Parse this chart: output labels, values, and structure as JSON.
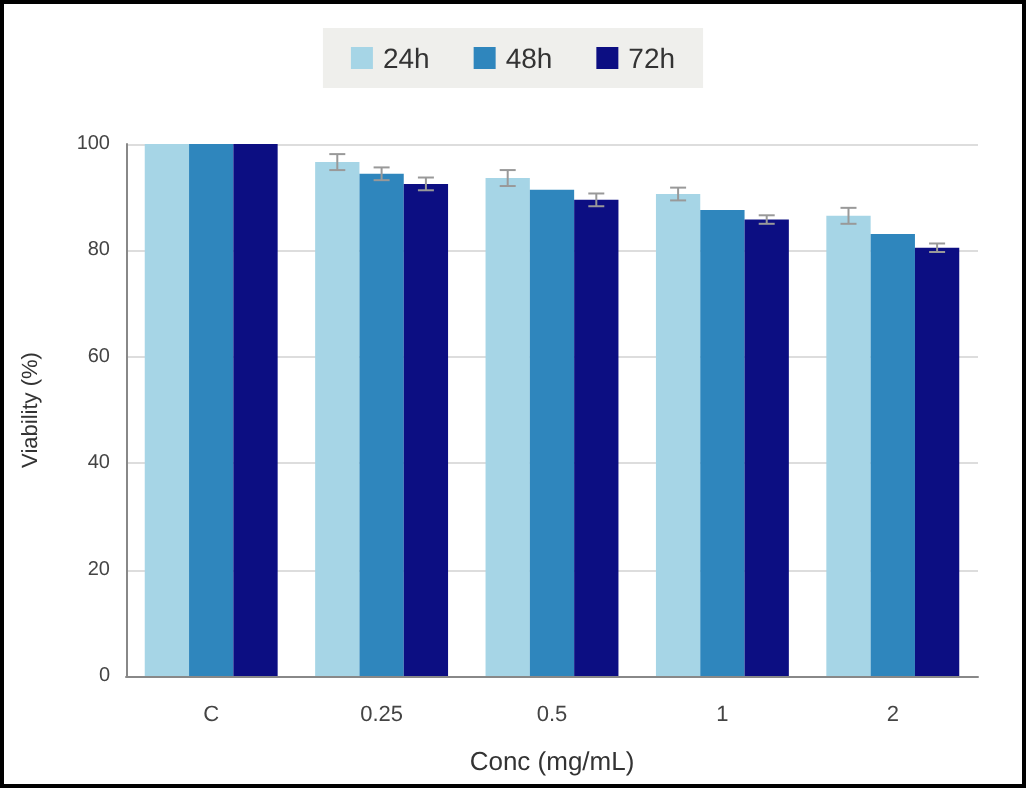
{
  "chart_data": {
    "type": "bar",
    "xlabel": "Conc (mg/mL)",
    "ylabel": "Viability (%)",
    "categories": [
      "C",
      "0.25",
      "0.5",
      "1",
      "2"
    ],
    "series": [
      {
        "name": "24h",
        "color": "#a6d5e6",
        "values": [
          100,
          96.6,
          93.6,
          90.6,
          86.5
        ],
        "errors": [
          null,
          1.5,
          1.5,
          1.2,
          1.5
        ]
      },
      {
        "name": "48h",
        "color": "#2f86bd",
        "values": [
          100,
          94.4,
          91.4,
          87.6,
          83.1
        ],
        "errors": [
          null,
          1.2,
          null,
          null,
          null
        ]
      },
      {
        "name": "72h",
        "color": "#0c0e82",
        "values": [
          100,
          92.5,
          89.5,
          85.8,
          80.5
        ],
        "errors": [
          null,
          1.2,
          1.2,
          0.8,
          0.8
        ]
      }
    ],
    "ylim": [
      0,
      100
    ],
    "yticks": [
      0,
      20,
      40,
      60,
      80,
      100
    ],
    "grid": "y",
    "legend": "top"
  }
}
